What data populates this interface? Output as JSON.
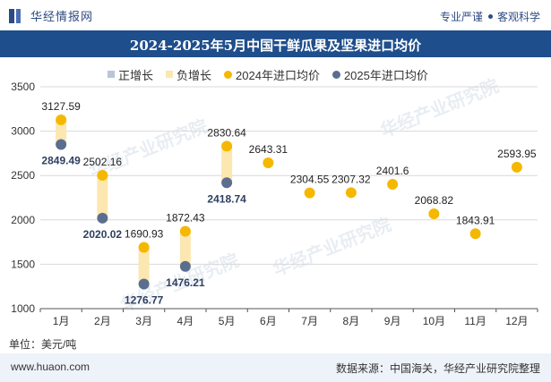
{
  "header": {
    "brand": "华经情报网",
    "slogan_left": "专业严谨",
    "slogan_right": "客观科学"
  },
  "title": "2024-2025年5月中国干鲜瓜果及坚果进口均价",
  "legend": [
    {
      "label": "正增长",
      "color": "#b9c6d8",
      "shape": "square"
    },
    {
      "label": "负增长",
      "color": "#fce7b0",
      "shape": "square"
    },
    {
      "label": "2024年进口均价",
      "color": "#f5b800",
      "shape": "circle"
    },
    {
      "label": "2025年进口均价",
      "color": "#5b6e8f",
      "shape": "circle"
    }
  ],
  "unit": "单位：美元/吨",
  "footer": {
    "site": "www.huaon.com",
    "source": "数据来源：中国海关，华经产业研究院整理"
  },
  "watermark": "华经产业研究院",
  "colors": {
    "title_bg": "#1f4e8c",
    "series_2024": "#f5b800",
    "series_2025": "#5b6e8f",
    "neg_bar": "#fce7b0",
    "pos_bar": "#b9c6d8",
    "grid": "#d9d9d9"
  },
  "chart_data": {
    "type": "scatter",
    "categories": [
      "1月",
      "2月",
      "3月",
      "4月",
      "5月",
      "6月",
      "7月",
      "8月",
      "9月",
      "10月",
      "11月",
      "12月"
    ],
    "ylim": [
      1000,
      3500
    ],
    "yticks": [
      1000,
      1500,
      2000,
      2500,
      3000,
      3500
    ],
    "grid": true,
    "legend_position": "top",
    "series": [
      {
        "name": "2024年进口均价",
        "values": [
          3127.59,
          2502.16,
          1690.93,
          1872.43,
          2830.64,
          2643.31,
          2304.55,
          2307.32,
          2401.6,
          2068.82,
          1843.91,
          2593.95
        ],
        "labels": [
          "3127.59",
          "2502.16",
          "1690.93",
          "1872.43",
          "2830.64",
          "2643.31",
          "2304.55",
          "2307.32",
          "2401.6",
          "2068.82",
          "1843.91",
          "2593.95"
        ]
      },
      {
        "name": "2025年进口均价",
        "values": [
          2849.49,
          2020.02,
          1276.77,
          1476.21,
          2418.74,
          null,
          null,
          null,
          null,
          null,
          null,
          null
        ],
        "labels": [
          "2849.49",
          "2020.02",
          "1276.77",
          "1476.21",
          "2418.74",
          null,
          null,
          null,
          null,
          null,
          null,
          null
        ]
      }
    ]
  }
}
